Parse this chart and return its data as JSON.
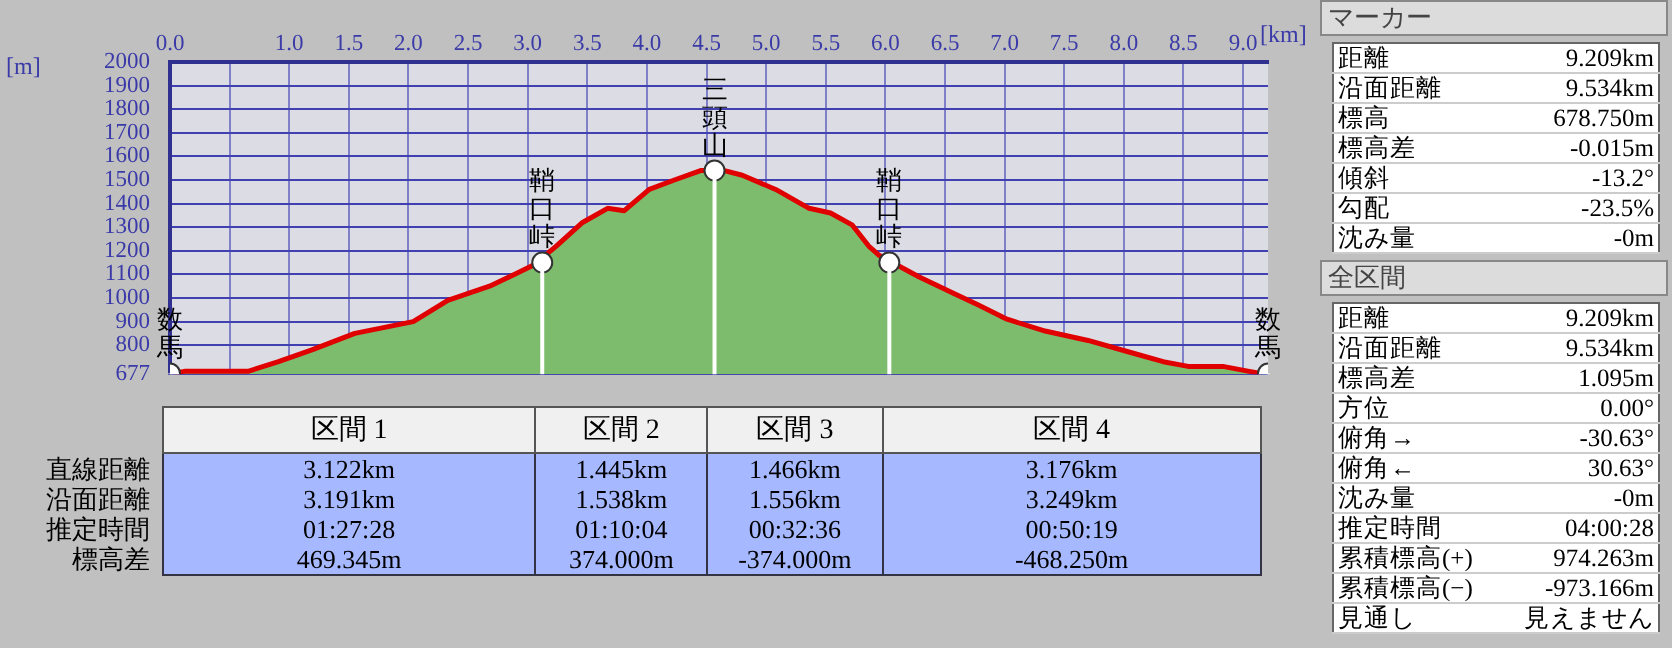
{
  "chart_data": [
    {
      "type": "area",
      "xlabel": "[km]",
      "ylabel": "[m]",
      "xlim": [
        0,
        9.209
      ],
      "ylim": [
        677,
        2000
      ],
      "xticks": [
        {
          "value": 0,
          "label": "0.0"
        },
        {
          "value": 0.5,
          "label": null
        },
        {
          "value": 1,
          "label": "1.0"
        },
        {
          "value": 1.5,
          "label": "1.5"
        },
        {
          "value": 2,
          "label": "2.0"
        },
        {
          "value": 2.5,
          "label": "2.5"
        },
        {
          "value": 3,
          "label": "3.0"
        },
        {
          "value": 3.5,
          "label": "3.5"
        },
        {
          "value": 4,
          "label": "4.0"
        },
        {
          "value": 4.5,
          "label": "4.5"
        },
        {
          "value": 5,
          "label": "5.0"
        },
        {
          "value": 5.5,
          "label": "5.5"
        },
        {
          "value": 6,
          "label": "6.0"
        },
        {
          "value": 6.5,
          "label": "6.5"
        },
        {
          "value": 7,
          "label": "7.0"
        },
        {
          "value": 7.5,
          "label": "7.5"
        },
        {
          "value": 8,
          "label": "8.0"
        },
        {
          "value": 8.5,
          "label": "8.5"
        },
        {
          "value": 9,
          "label": "9.0"
        }
      ],
      "yticks": [
        677,
        800,
        900,
        1000,
        1100,
        1200,
        1300,
        1400,
        1500,
        1600,
        1700,
        1800,
        1900,
        2000
      ],
      "grid": true,
      "legend": false,
      "x": [
        0,
        0.03,
        0.13,
        0.35,
        0.66,
        0.91,
        1.19,
        1.55,
        2.04,
        2.33,
        2.68,
        2.93,
        3.122,
        3.24,
        3.46,
        3.67,
        3.81,
        4.02,
        4.23,
        4.45,
        4.567,
        4.8,
        5.08,
        5.36,
        5.54,
        5.72,
        5.86,
        6.033,
        6.28,
        6.57,
        6.78,
        7.02,
        7.34,
        7.7,
        8.05,
        8.33,
        8.54,
        8.83,
        9.04,
        9.209
      ],
      "series": [
        {
          "type": "area",
          "color": "#7cbc6c",
          "values": [
            680,
            680,
            690,
            690,
            690,
            730,
            780,
            850,
            900,
            990,
            1050,
            1110,
            1150,
            1220,
            1320,
            1380,
            1370,
            1460,
            1500,
            1540,
            1540,
            1520,
            1460,
            1380,
            1360,
            1310,
            1220,
            1150,
            1090,
            1020,
            970,
            910,
            860,
            820,
            770,
            730,
            710,
            710,
            690,
            680
          ]
        },
        {
          "type": "line",
          "color": "#e00000",
          "x": [
            0.03,
            0.13,
            0.35,
            0.66,
            0.91,
            1.19,
            1.55,
            2.04,
            2.33,
            2.68,
            2.93,
            3.05,
            3.24,
            3.46,
            3.67,
            3.81,
            4.02,
            4.23,
            4.45,
            4.65,
            4.8,
            5.08,
            5.36,
            5.54,
            5.72,
            5.86,
            5.95,
            6.28,
            6.57,
            6.78,
            7.02,
            7.34,
            7.7,
            8.05,
            8.33,
            8.54,
            8.83,
            9.04,
            9.15
          ],
          "values": [
            680,
            690,
            690,
            690,
            730,
            780,
            850,
            900,
            990,
            1050,
            1110,
            1140,
            1220,
            1320,
            1380,
            1370,
            1460,
            1500,
            1540,
            1540,
            1520,
            1460,
            1380,
            1360,
            1310,
            1220,
            1180,
            1090,
            1020,
            970,
            910,
            860,
            820,
            770,
            730,
            710,
            710,
            690,
            680
          ]
        },
        {
          "type": "scatter",
          "color": "#ffffff",
          "marker": "circle",
          "x": [
            0,
            3.122,
            4.567,
            6.033,
            9.209
          ],
          "values": [
            680,
            1150,
            1540,
            1150,
            680
          ]
        }
      ],
      "annotations": [
        {
          "text": "数馬",
          "x": 0,
          "y": 680
        },
        {
          "text": "鞘口峠",
          "x": 3.122,
          "y": 1150
        },
        {
          "text": "三頭山",
          "x": 4.567,
          "y": 1535
        },
        {
          "text": "鞘口峠",
          "x": 6.033,
          "y": 1150
        },
        {
          "text": "数馬",
          "x": 9.209,
          "y": 680
        }
      ]
    },
    {
      "type": "other",
      "categories": [
        "区間 1",
        "区間 2",
        "区間 3",
        "区間 4"
      ],
      "y_categories": [
        "直線距離",
        "沿面距離",
        "推定時間",
        "標高差"
      ],
      "cell_labels": [
        [
          "3.122km",
          "1.445km",
          "1.466km",
          "3.176km"
        ],
        [
          "3.191km",
          "1.538km",
          "1.556km",
          "3.249km"
        ],
        [
          "01:27:28",
          "01:10:04",
          "00:32:36",
          "00:50:19"
        ],
        [
          "469.345m",
          "374.000m",
          "-374.000m",
          "-468.250m"
        ]
      ]
    },
    {
      "type": "other",
      "title": "マーカー",
      "y_categories": [
        "距離",
        "沿面距離",
        "標高",
        "標高差",
        "傾斜",
        "勾配",
        "沈み量"
      ],
      "cell_labels": [
        [
          "9.209km"
        ],
        [
          "9.534km"
        ],
        [
          "678.750m"
        ],
        [
          "-0.015m"
        ],
        [
          "-13.2°"
        ],
        [
          "-23.5%"
        ],
        [
          "-0m"
        ]
      ]
    },
    {
      "type": "other",
      "title": "全区間",
      "y_categories": [
        "距離",
        "沿面距離",
        "標高差",
        "方位",
        "俯角→",
        "俯角←",
        "沈み量",
        "推定時間",
        "累積標高(+)",
        "累積標高(−)",
        "見通し"
      ],
      "cell_labels": [
        [
          "9.209km"
        ],
        [
          "9.534km"
        ],
        [
          "1.095m"
        ],
        [
          "0.00°"
        ],
        [
          "-30.63°"
        ],
        [
          "30.63°"
        ],
        [
          "-0m"
        ],
        [
          "04:00:28"
        ],
        [
          "974.263m"
        ],
        [
          "-973.166m"
        ],
        [
          "見えません"
        ]
      ]
    }
  ]
}
